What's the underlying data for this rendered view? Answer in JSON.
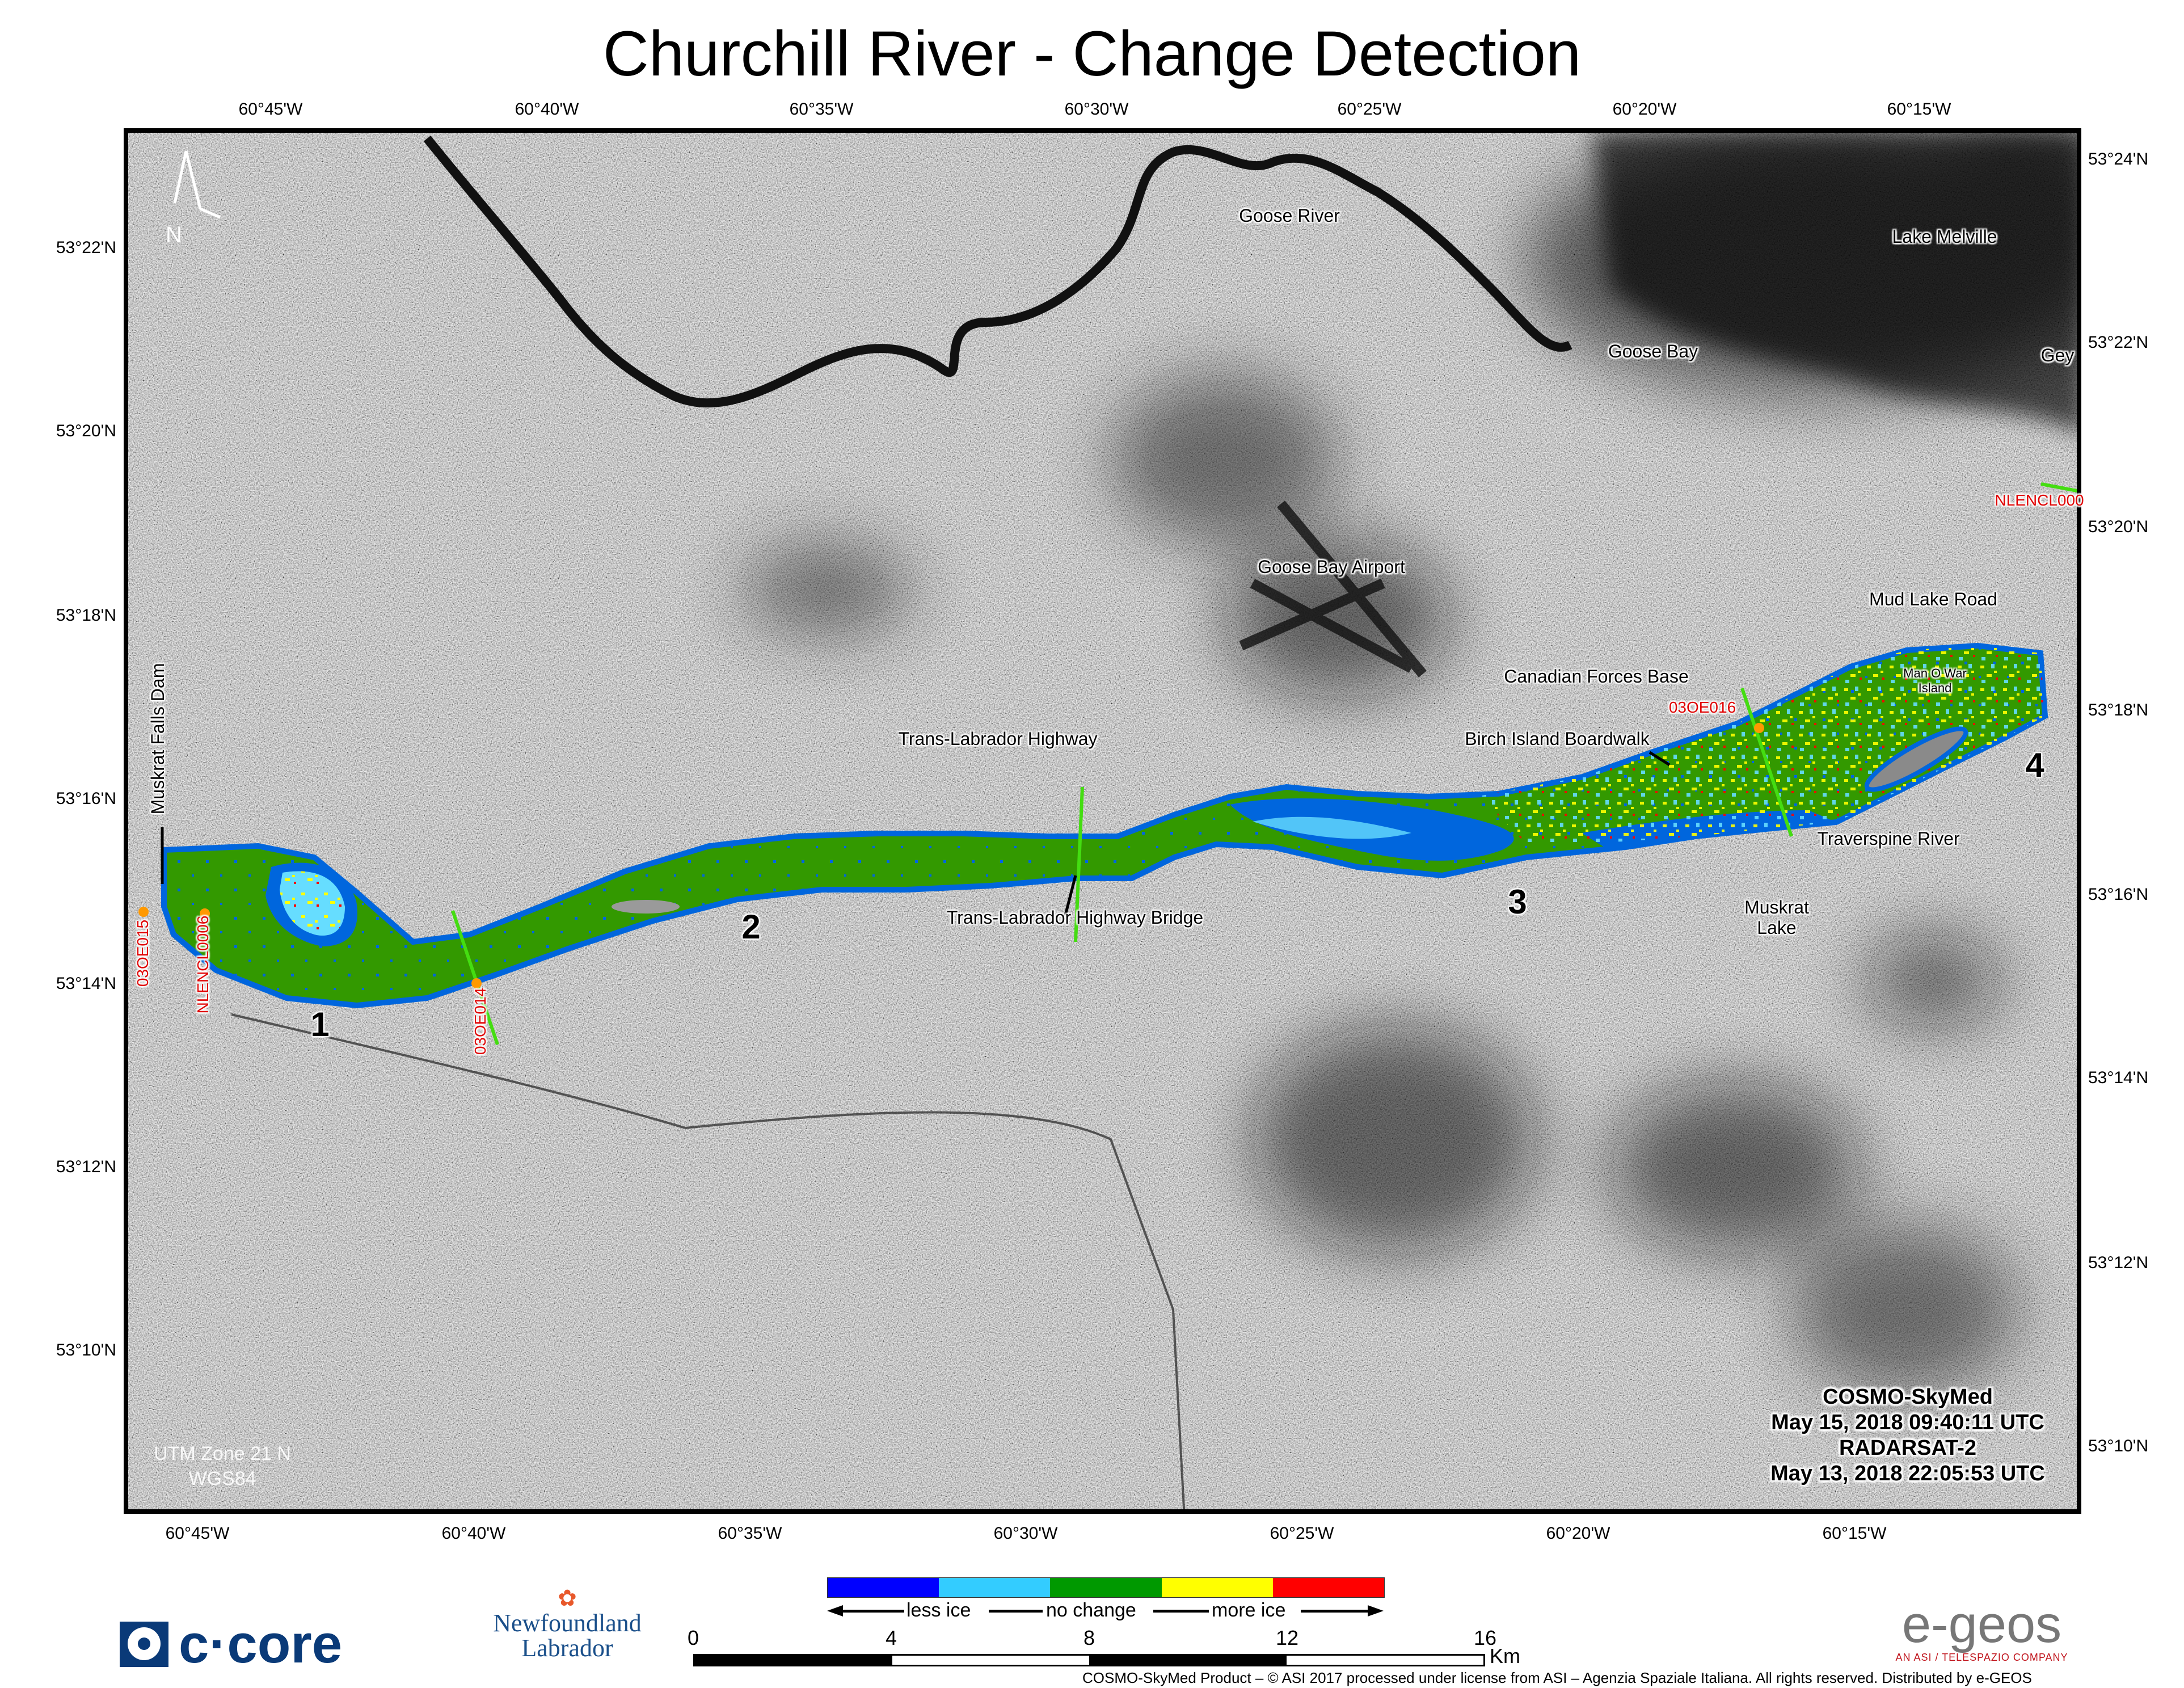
{
  "title": "Churchill River - Change Detection",
  "axes": {
    "top": [
      "60°45'W",
      "60°40'W",
      "60°35'W",
      "60°30'W",
      "60°25'W",
      "60°20'W",
      "60°15'W"
    ],
    "bottom": [
      "60°45'W",
      "60°40'W",
      "60°35'W",
      "60°30'W",
      "60°25'W",
      "60°20'W",
      "60°15'W"
    ],
    "left": [
      "53°22'N",
      "53°20'N",
      "53°18'N",
      "53°16'N",
      "53°14'N",
      "53°12'N",
      "53°10'N"
    ],
    "right": [
      "53°24'N",
      "53°22'N",
      "53°20'N",
      "53°18'N",
      "53°16'N",
      "53°14'N",
      "53°12'N",
      "53°10'N"
    ]
  },
  "map_labels": {
    "goose_river": "Goose River",
    "lake_melville": "Lake Melville",
    "goose_bay": "Goose Bay",
    "gey": "Gey",
    "goose_bay_airport": "Goose Bay Airport",
    "mud_lake_road": "Mud Lake Road",
    "canadian_forces_base": "Canadian Forces Base",
    "man_o_war_island_1": "Man O War",
    "man_o_war_island_2": "Island",
    "birch_island_boardwalk": "Birch Island Boardwalk",
    "trans_labrador_highway": "Trans-Labrador Highway",
    "traverspine_river": "Traverspine River",
    "muskrat_lake_1": "Muskrat",
    "muskrat_lake_2": "Lake",
    "trans_labrador_highway_bridge": "Trans-Labrador Highway Bridge",
    "muskrat_falls_dam": "Muskrat Falls Dam",
    "north": "N"
  },
  "stations": [
    "03OE015",
    "NLENCL0006",
    "03OE014",
    "03OE016",
    "NLENCL000"
  ],
  "sections": [
    "1",
    "2",
    "3",
    "4"
  ],
  "projection": {
    "line1": "UTM Zone 21 N",
    "line2": "WGS84"
  },
  "acquisition": {
    "sensor1": "COSMO-SkyMed",
    "date1": "May 15, 2018 09:40:11 UTC",
    "sensor2": "RADARSAT-2",
    "date2": "May 13, 2018 22:05:53 UTC"
  },
  "legend": {
    "colors": [
      "#0000ff",
      "#33ccff",
      "#009900",
      "#ffff00",
      "#ff0000"
    ],
    "less": "less ice",
    "none": "no change",
    "more": "more ice"
  },
  "scale": {
    "ticks": [
      "0",
      "4",
      "8",
      "12",
      "16"
    ],
    "unit": "Km"
  },
  "credits": "COSMO-SkyMed Product – © ASI 2017 processed under license from ASI – Agenzia Spaziale Italiana. All rights reserved. Distributed by e-GEOS",
  "logos": {
    "ccore": "c·core",
    "nl_1": "Newfoundland",
    "nl_2": "Labrador",
    "egeos": "e-geos",
    "egeos_tag": "AN ASI / TELESPAZIO COMPANY"
  },
  "colors": {
    "river_nochange": "#339900",
    "river_edge": "#0066dd",
    "station_dot": "#ff9900",
    "transect": "#44dd11"
  }
}
